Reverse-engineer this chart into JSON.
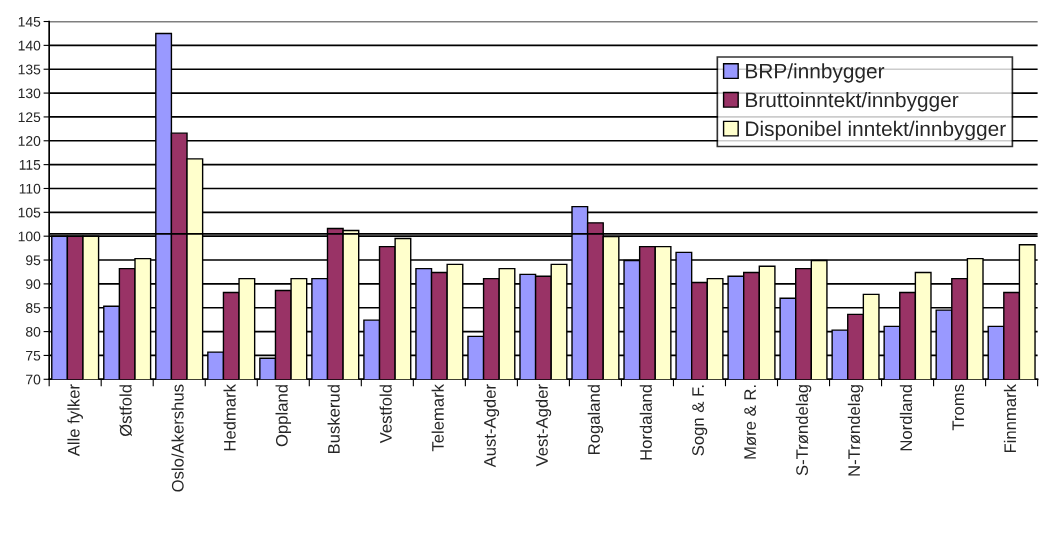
{
  "chart_data": {
    "type": "bar",
    "categories": [
      "Alle fylker",
      "Østfold",
      "Oslo/Akershus",
      "Hedmark",
      "Oppland",
      "Buskerud",
      "Vestfold",
      "Telemark",
      "Aust-Agder",
      "Vest-Agder",
      "Rogaland",
      "Hordaland",
      "Sogn & F.",
      "Møre & R.",
      "S-Trøndelag",
      "N-Trøndelag",
      "Nordland",
      "Troms",
      "Finnmark"
    ],
    "series": [
      {
        "name": "BRP/innbygger",
        "color": "#9999ff",
        "values": [
          100,
          85.3,
          142.5,
          75.7,
          74.4,
          91.1,
          82.4,
          93.2,
          79.0,
          92.0,
          106.2,
          94.9,
          96.6,
          91.6,
          87.0,
          80.3,
          81.1,
          84.5,
          81.1
        ]
      },
      {
        "name": "Bruttoinntekt/innbygger",
        "color": "#993366",
        "values": [
          100,
          93.2,
          121.6,
          88.2,
          88.6,
          101.6,
          97.8,
          92.4,
          91.1,
          91.6,
          102.8,
          97.8,
          90.3,
          92.4,
          93.2,
          83.6,
          88.2,
          91.1,
          88.2
        ]
      },
      {
        "name": "Disponibel inntekt/innbygger",
        "color": "#ffffcc",
        "values": [
          100,
          95.3,
          116.2,
          91.1,
          91.1,
          101.2,
          99.5,
          94.1,
          93.2,
          94.1,
          99.9,
          97.8,
          91.1,
          93.7,
          94.9,
          87.8,
          92.4,
          95.3,
          98.2
        ]
      }
    ],
    "ylim": [
      70,
      145
    ],
    "yticks": [
      70,
      75,
      80,
      85,
      90,
      95,
      100,
      105,
      110,
      115,
      120,
      125,
      130,
      135,
      140,
      145
    ],
    "ref_lines": [
      {
        "axis": "y",
        "value": 100.5,
        "color": "#000000"
      }
    ],
    "grid": "y",
    "legend": "top right"
  }
}
